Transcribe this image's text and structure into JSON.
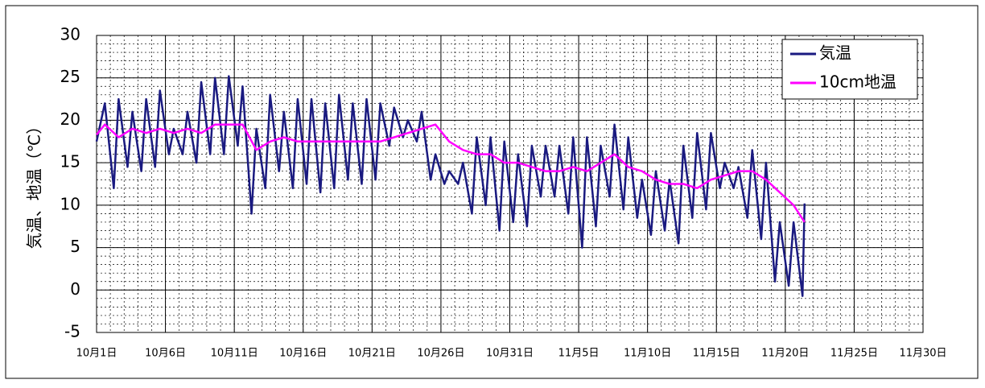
{
  "chart_data": {
    "type": "line",
    "y_label": "気温、地温（℃）",
    "xlim": [
      1,
      61
    ],
    "ylim": [
      -5,
      30
    ],
    "yticks": [
      -5,
      0,
      5,
      10,
      15,
      20,
      25,
      30
    ],
    "xticks": [
      {
        "value": 1,
        "label": "10月1日"
      },
      {
        "value": 6,
        "label": "10月6日"
      },
      {
        "value": 11,
        "label": "10月11日"
      },
      {
        "value": 16,
        "label": "10月16日"
      },
      {
        "value": 21,
        "label": "10月21日"
      },
      {
        "value": 26,
        "label": "10月26日"
      },
      {
        "value": 31,
        "label": "10月31日"
      },
      {
        "value": 36,
        "label": "11月5日"
      },
      {
        "value": 41,
        "label": "11月10日"
      },
      {
        "value": 46,
        "label": "11月15日"
      },
      {
        "value": 51,
        "label": "11月20日"
      },
      {
        "value": 56,
        "label": "11月25日"
      },
      {
        "value": 61,
        "label": "11月30日"
      }
    ],
    "grid": true,
    "legend": "upper right",
    "series": [
      {
        "name": "気温",
        "color": "#1a1a80",
        "x": [
          1,
          1.6,
          2.25,
          2.6,
          3.25,
          3.6,
          4.25,
          4.6,
          5.25,
          5.6,
          6.25,
          6.6,
          7.25,
          7.6,
          8.25,
          8.6,
          9.25,
          9.6,
          10.25,
          10.6,
          11.25,
          11.6,
          12.25,
          12.6,
          13.25,
          13.6,
          14.25,
          14.6,
          15.25,
          15.6,
          16.25,
          16.6,
          17.25,
          17.6,
          18.25,
          18.6,
          19.25,
          19.6,
          20.25,
          20.6,
          21.25,
          21.6,
          22.25,
          22.6,
          23.25,
          23.6,
          24.25,
          24.6,
          25.25,
          25.6,
          26.25,
          26.6,
          27.25,
          27.6,
          28.25,
          28.6,
          29.25,
          29.6,
          30.25,
          30.6,
          31.25,
          31.6,
          32.25,
          32.6,
          33.25,
          33.6,
          34.25,
          34.6,
          35.25,
          35.6,
          36.25,
          36.6,
          37.25,
          37.6,
          38.25,
          38.6,
          39.25,
          39.6,
          40.25,
          40.6,
          41.25,
          41.6,
          42.25,
          42.6,
          43.25,
          43.6,
          44.25,
          44.6,
          45.25,
          45.6,
          46.25,
          46.6,
          47.25,
          47.6,
          48.25,
          48.6,
          49.25,
          49.6,
          50.25,
          50.6,
          51.25,
          51.6,
          52.25,
          52.4
        ],
        "values": [
          17.5,
          22,
          12,
          22.5,
          14.5,
          21,
          14,
          22.5,
          14.5,
          23.5,
          16,
          19,
          16,
          21,
          15,
          24.5,
          16,
          25,
          16,
          25.2,
          17,
          24,
          9,
          19,
          12,
          23,
          14,
          21,
          12,
          22.5,
          12.5,
          22.5,
          11.5,
          22,
          12,
          23,
          13,
          22,
          12.5,
          22.5,
          13,
          22,
          17,
          21.5,
          18,
          20,
          17.5,
          21,
          13,
          16,
          12.5,
          14,
          12.5,
          15,
          9,
          18,
          10,
          18,
          7,
          17.5,
          8,
          16,
          7.5,
          17,
          11,
          17,
          11,
          17,
          9,
          18,
          5,
          18,
          7.5,
          17,
          11,
          19.5,
          9.5,
          18,
          8.5,
          13,
          6.5,
          14,
          7,
          13,
          5.5,
          17,
          8.5,
          18.5,
          9.5,
          18.5,
          12,
          15,
          12,
          14.5,
          8.5,
          16.5,
          6,
          15,
          1,
          8,
          0.5,
          8,
          -0.7,
          10.2
        ]
      },
      {
        "name": "10cm地温",
        "color": "#ff00ff",
        "x": [
          1,
          1.6,
          2.6,
          3.6,
          4.6,
          5.6,
          6.6,
          7.6,
          8.6,
          9.6,
          10.6,
          11.6,
          12.6,
          13.6,
          14.6,
          15.6,
          16.6,
          17.6,
          18.6,
          19.6,
          20.6,
          21.6,
          22.6,
          23.6,
          24.6,
          25.6,
          26.6,
          27.6,
          28.6,
          29.6,
          30.6,
          31.6,
          32.6,
          33.6,
          34.6,
          35.6,
          36.6,
          37.6,
          38.6,
          39.6,
          40.6,
          41.6,
          42.6,
          43.6,
          44.6,
          45.6,
          46.6,
          47.6,
          48.6,
          49.6,
          50.6,
          51.6,
          52.4
        ],
        "values": [
          18.3,
          19.5,
          18,
          19,
          18.5,
          19,
          18.5,
          19,
          18.5,
          19.5,
          19.5,
          19.5,
          16.5,
          17.5,
          18,
          17.5,
          17.5,
          17.5,
          17.5,
          17.5,
          17.5,
          17.5,
          18,
          18.5,
          19,
          19.5,
          17.5,
          16.5,
          16,
          16,
          15,
          15,
          14.5,
          14,
          14,
          14.5,
          14,
          15,
          16,
          14.5,
          14,
          13,
          12.5,
          12.5,
          12,
          13,
          13.5,
          14,
          14,
          13,
          11.5,
          10,
          8
        ]
      }
    ]
  }
}
